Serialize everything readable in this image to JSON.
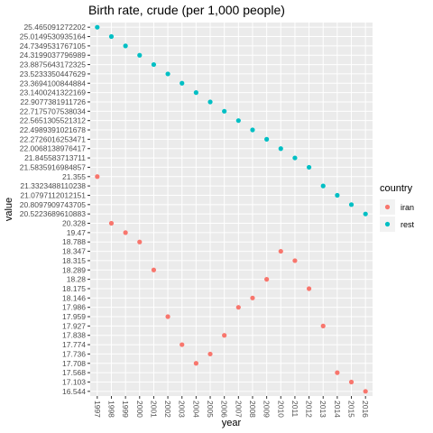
{
  "chart_data": {
    "type": "scatter",
    "title": "Birth rate, crude (per 1,000 people)",
    "xlabel": "year",
    "ylabel": "value",
    "x_is_categorical": true,
    "y_is_categorical": true,
    "categories": [
      "1997",
      "1998",
      "1999",
      "2000",
      "2001",
      "2002",
      "2003",
      "2004",
      "2005",
      "2006",
      "2007",
      "2008",
      "2009",
      "2010",
      "2011",
      "2012",
      "2013",
      "2014",
      "2015",
      "2016"
    ],
    "y_categories": [
      "16.544",
      "17.103",
      "17.568",
      "17.708",
      "17.736",
      "17.774",
      "17.838",
      "17.927",
      "17.959",
      "17.986",
      "18.146",
      "18.175",
      "18.28",
      "18.289",
      "18.315",
      "18.347",
      "18.788",
      "19.47",
      "20.328",
      "20.5223689610883",
      "20.8097909743705",
      "21.0797112012151",
      "21.3323488110238",
      "21.355",
      "21.5835916984857",
      "21.845583713711",
      "22.0068138976417",
      "22.2726016253471",
      "22.4989391021678",
      "22.5651305521312",
      "22.7175707538034",
      "22.9077381911726",
      "23.1400241322169",
      "23.3694100844884",
      "23.5233350447629",
      "23.8875643172325",
      "24.3199037796989",
      "24.7349531767105",
      "25.0149530935164",
      "25.465091272202"
    ],
    "legend": {
      "title": "country",
      "position": "right"
    },
    "grid": true,
    "series": [
      {
        "name": "iran",
        "color": "#F8766D",
        "values": [
          "21.355",
          "20.328",
          "19.47",
          "18.788",
          "18.289",
          "17.959",
          "17.774",
          "17.708",
          "17.736",
          "17.838",
          "17.986",
          "18.146",
          "18.28",
          "18.347",
          "18.315",
          "18.175",
          "17.927",
          "17.568",
          "17.103",
          "16.544"
        ]
      },
      {
        "name": "rest",
        "color": "#00BFC4",
        "values": [
          "25.465091272202",
          "25.0149530935164",
          "24.7349531767105",
          "24.3199037796989",
          "23.8875643172325",
          "23.5233350447629",
          "23.3694100844884",
          "23.1400241322169",
          "22.9077381911726",
          "22.7175707538034",
          "22.5651305521312",
          "22.4989391021678",
          "22.2726016253471",
          "22.0068138976417",
          "21.845583713711",
          "21.5835916984857",
          "21.3323488110238",
          "21.0797112012151",
          "20.8097909743705",
          "20.5223689610883"
        ]
      }
    ]
  }
}
